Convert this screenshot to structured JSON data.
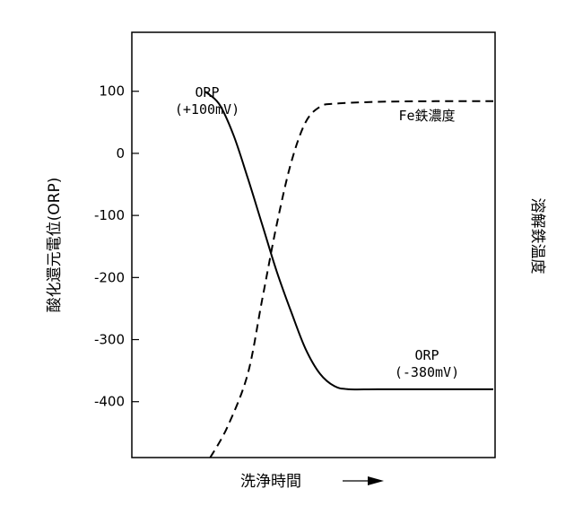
{
  "chart_data": {
    "type": "line",
    "title": "",
    "xlabel": "洗浄時間",
    "ylabel": "酸化還元電位(ORP)",
    "y2label": "溶解鉄温度",
    "x_axis_arrow": true,
    "ylim": [
      -490,
      195
    ],
    "yticks": [
      100,
      0,
      -100,
      -200,
      -300,
      -400
    ],
    "ytick_labels": [
      "100",
      "0",
      "-100",
      "-200",
      "-300",
      "-400"
    ],
    "x_ticks_shown": false,
    "grid": false,
    "series": [
      {
        "name": "ORP",
        "style": "solid",
        "color": "#000000",
        "points": [
          [
            0.0,
            100
          ],
          [
            0.05,
            80
          ],
          [
            0.1,
            30
          ],
          [
            0.15,
            -40
          ],
          [
            0.2,
            -115
          ],
          [
            0.25,
            -190
          ],
          [
            0.3,
            -255
          ],
          [
            0.35,
            -315
          ],
          [
            0.4,
            -355
          ],
          [
            0.45,
            -375
          ],
          [
            0.5,
            -380
          ],
          [
            0.6,
            -380
          ],
          [
            0.8,
            -380
          ],
          [
            1.0,
            -380
          ]
        ]
      },
      {
        "name": "Fe鉄濃度",
        "style": "dashed",
        "color": "#000000",
        "points": [
          [
            0.02,
            -490
          ],
          [
            0.08,
            -440
          ],
          [
            0.15,
            -355
          ],
          [
            0.2,
            -235
          ],
          [
            0.25,
            -115
          ],
          [
            0.3,
            -15
          ],
          [
            0.35,
            50
          ],
          [
            0.4,
            75
          ],
          [
            0.45,
            80
          ],
          [
            0.6,
            83
          ],
          [
            0.8,
            84
          ],
          [
            1.0,
            84
          ]
        ]
      }
    ],
    "annotations": [
      {
        "text": "ORP",
        "series": "ORP",
        "position": "start"
      },
      {
        "text": "(+100mV)",
        "series": "ORP",
        "position": "start"
      },
      {
        "text": "Fe鉄濃度",
        "series": "Fe鉄濃度",
        "position": "end"
      },
      {
        "text": "ORP",
        "series": "ORP",
        "position": "end"
      },
      {
        "text": "(-380mV)",
        "series": "ORP",
        "position": "end"
      }
    ]
  }
}
